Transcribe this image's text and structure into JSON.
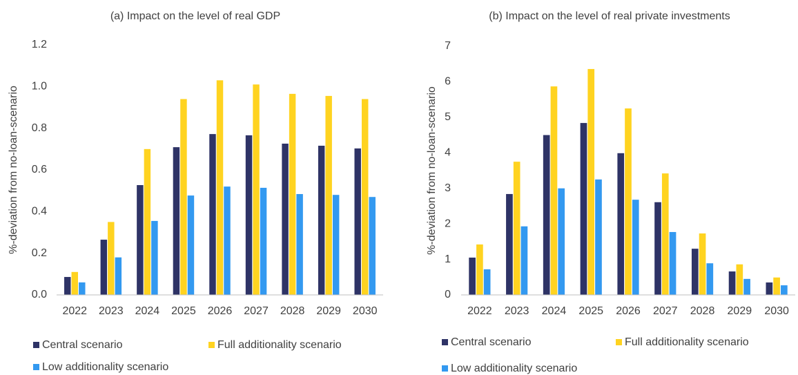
{
  "chart_data": [
    {
      "type": "bar",
      "title": "(a) Impact on the level of real GDP",
      "y_label": "%-deviation from no-loan-scenario",
      "categories": [
        "2022",
        "2023",
        "2024",
        "2025",
        "2026",
        "2027",
        "2028",
        "2029",
        "2030"
      ],
      "series": [
        {
          "name": "Central scenario",
          "color": "#2e3366",
          "values": [
            0.086,
            0.265,
            0.527,
            0.709,
            0.772,
            0.766,
            0.726,
            0.716,
            0.703
          ]
        },
        {
          "name": "Full additionality scenario",
          "color": "#ffd320",
          "values": [
            0.11,
            0.35,
            0.7,
            0.94,
            1.03,
            1.01,
            0.965,
            0.955,
            0.94
          ]
        },
        {
          "name": "Low additionality scenario",
          "color": "#3399f0",
          "values": [
            0.06,
            0.18,
            0.355,
            0.477,
            0.52,
            0.514,
            0.484,
            0.48,
            0.47
          ]
        }
      ],
      "ylim": [
        0,
        1.2
      ],
      "yticks": [
        {
          "value": 0,
          "label": "0.0"
        },
        0.2,
        0.4,
        0.6,
        0.8,
        {
          "value": 1,
          "label": "1.0"
        },
        1.2
      ],
      "grid": false
    },
    {
      "type": "bar",
      "title": "(b) Impact on the level of real private investments",
      "y_label": "%-deviation from no-loan-scenario",
      "categories": [
        "2022",
        "2023",
        "2024",
        "2025",
        "2026",
        "2027",
        "2028",
        "2029",
        "2030"
      ],
      "series": [
        {
          "name": "Central scenario",
          "color": "#2e3366",
          "values": [
            1.05,
            2.84,
            4.5,
            4.84,
            3.99,
            2.61,
            1.3,
            0.66,
            0.35
          ]
        },
        {
          "name": "Full additionality scenario",
          "color": "#ffd320",
          "values": [
            1.42,
            3.75,
            5.87,
            6.36,
            5.25,
            3.42,
            1.73,
            0.86,
            0.49
          ]
        },
        {
          "name": "Low additionality scenario",
          "color": "#3399f0",
          "values": [
            0.72,
            1.93,
            3.0,
            3.25,
            2.68,
            1.77,
            0.89,
            0.45,
            0.27
          ]
        }
      ],
      "ylim": [
        0,
        7
      ],
      "yticks": [
        0,
        1,
        2,
        3,
        4,
        5,
        6,
        7
      ],
      "grid": false
    }
  ]
}
